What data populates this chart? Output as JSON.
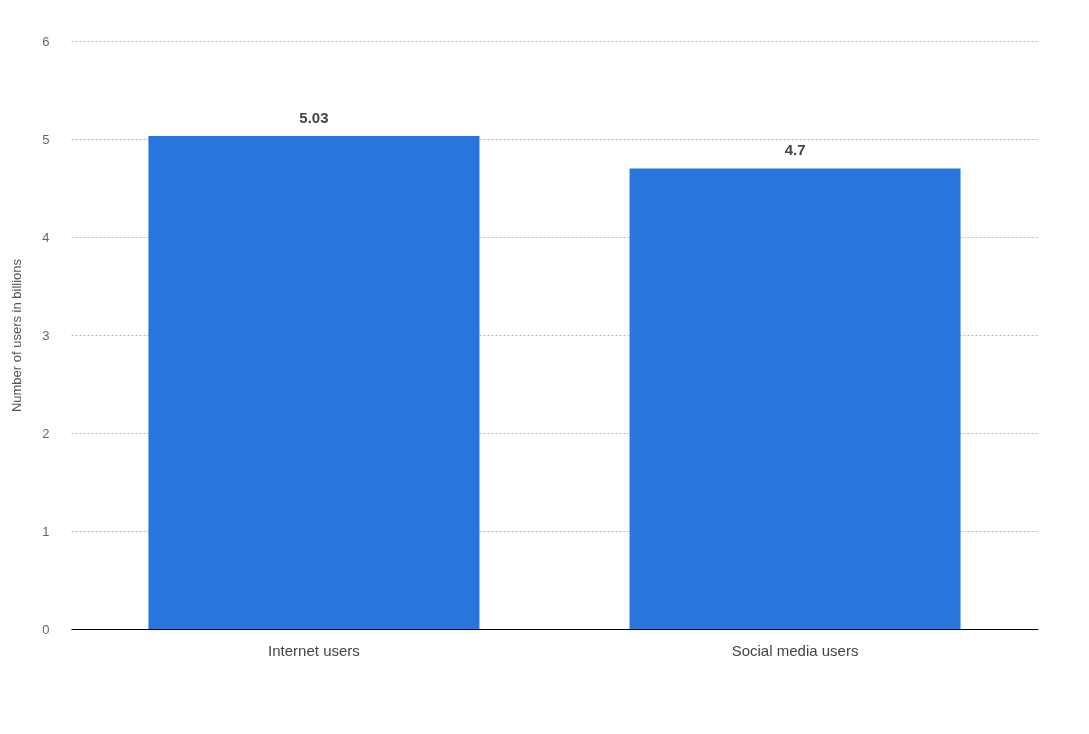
{
  "chart_data": {
    "type": "bar",
    "ylabel": "Number of users in billions",
    "categories": [
      "Internet users",
      "Social media users"
    ],
    "values": [
      5.03,
      4.7
    ],
    "color": "#2876dd",
    "ylim": [
      0,
      6
    ],
    "yticks": [
      0,
      1,
      2,
      3,
      4,
      5,
      6
    ],
    "grid": "y",
    "data_labels": true
  }
}
